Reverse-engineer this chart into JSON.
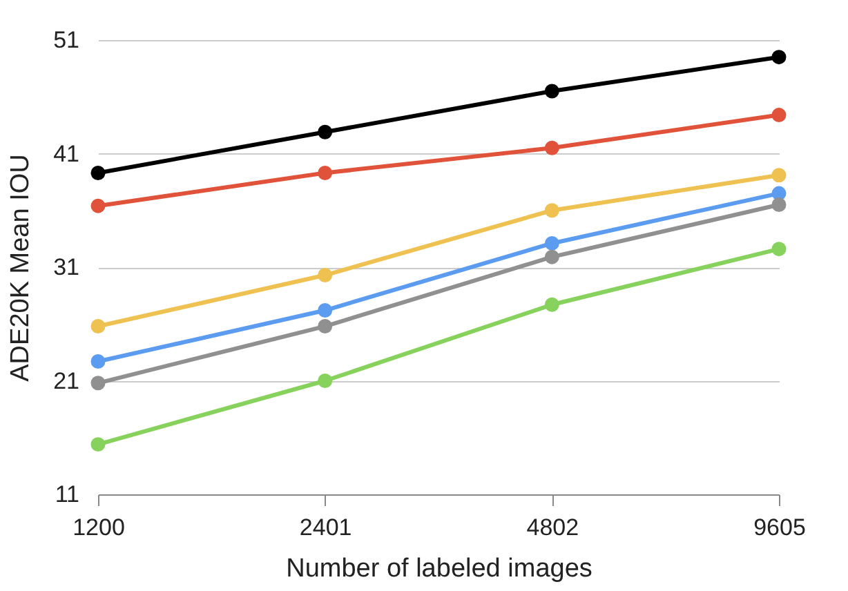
{
  "chart_data": {
    "type": "line",
    "xlabel": "Number of labeled images",
    "ylabel": "ADE20K Mean IOU",
    "categories": [
      "1200",
      "2401",
      "4802",
      "9605"
    ],
    "ylim": [
      11,
      51
    ],
    "yticks": [
      11,
      21,
      31,
      41,
      51
    ],
    "grid": "y",
    "marker": "circle",
    "line_style": "solid",
    "series": [
      {
        "color": "#000000",
        "values": [
          39.3,
          42.9,
          46.5,
          49.5
        ]
      },
      {
        "color": "#e0533a",
        "values": [
          36.4,
          39.3,
          41.5,
          44.4
        ]
      },
      {
        "color": "#eec150",
        "values": [
          25.8,
          30.3,
          36.0,
          39.1
        ]
      },
      {
        "color": "#5b9bf0",
        "values": [
          22.7,
          27.2,
          33.1,
          37.5
        ]
      },
      {
        "color": "#909090",
        "values": [
          20.8,
          25.8,
          31.9,
          36.5
        ]
      },
      {
        "color": "#86d25c",
        "values": [
          15.4,
          21.0,
          27.7,
          32.6
        ]
      }
    ]
  }
}
